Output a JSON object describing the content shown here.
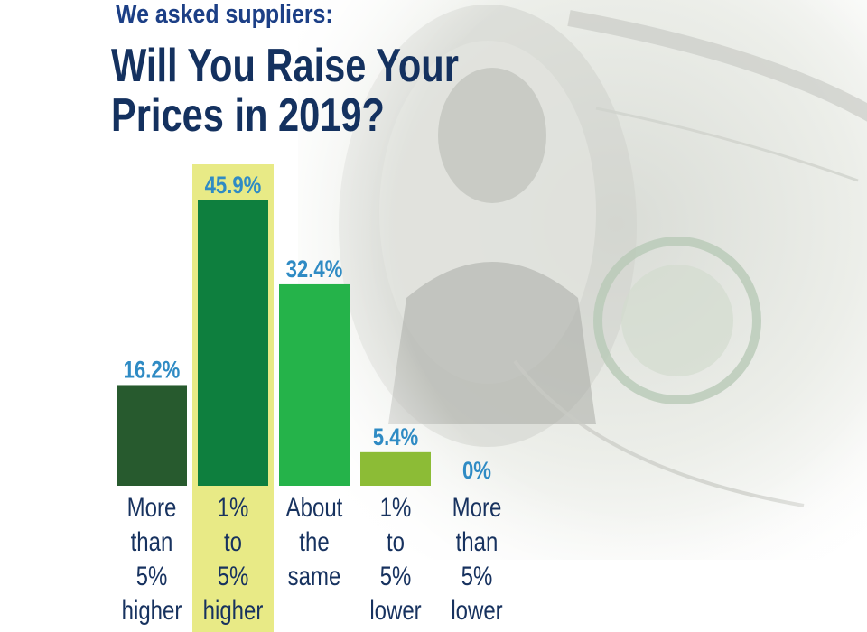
{
  "header": {
    "subtitle": "We asked suppliers:",
    "title_line1": "Will You Raise Your",
    "title_line2": "Prices in 2019?"
  },
  "colors": {
    "highlight": "#e8ea86",
    "value_label": "#2f8bc4",
    "title": "#14315f",
    "category_label": "#17325f"
  },
  "chart_data": {
    "type": "bar",
    "categories": [
      [
        "More",
        "than",
        "5%",
        "higher"
      ],
      [
        "1%",
        "to",
        "5%",
        "higher"
      ],
      [
        "About",
        "the",
        "same"
      ],
      [
        "1%",
        "to",
        "5%",
        "lower"
      ],
      [
        "More",
        "than",
        "5%",
        "lower"
      ]
    ],
    "values": [
      16.2,
      45.9,
      32.4,
      5.4,
      0
    ],
    "value_labels": [
      "16.2%",
      "45.9%",
      "32.4%",
      "5.4%",
      "0%"
    ],
    "bar_colors": [
      "#275a2e",
      "#0e7f3e",
      "#25b34a",
      "#8cbc36",
      "#8cbc36"
    ],
    "highlighted_index": 1,
    "ylim": [
      0,
      45.9
    ],
    "grid": false,
    "legend": "none"
  }
}
